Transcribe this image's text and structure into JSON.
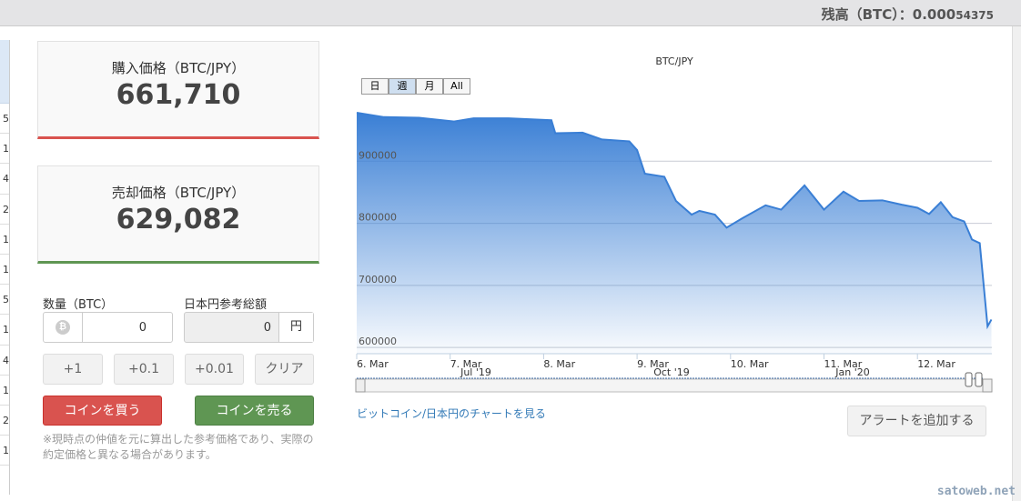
{
  "header": {
    "balance_label": "残高（BTC）：",
    "balance_main": "0.000",
    "balance_small": "54375"
  },
  "left_table": {
    "cells": [
      "5",
      "1",
      "4",
      "2",
      "1",
      "1",
      "5",
      "1",
      "4",
      "1",
      "2",
      "1"
    ]
  },
  "buy": {
    "label": "購入価格（BTC/JPY）",
    "value": "661,710",
    "color": "#d9534f"
  },
  "sell": {
    "label": "売却価格（BTC/JPY）",
    "value": "629,082",
    "color": "#5f9653"
  },
  "form": {
    "qty_label": "数量（BTC）",
    "qty_value": "0",
    "jpy_label": "日本円参考総額",
    "jpy_value": "0",
    "jpy_unit": "円",
    "coin_icon": "bitcoin-icon",
    "steps": [
      "+1",
      "+0.1",
      "+0.01",
      "クリア"
    ],
    "buy_button": "コインを買う",
    "sell_button": "コインを売る",
    "note": "※現時点の仲値を元に算出した参考価格であり、実際の約定価格と異なる場合があります。"
  },
  "chart_data": {
    "type": "area",
    "title": "BTC/JPY",
    "range_buttons": [
      "日",
      "週",
      "月",
      "All"
    ],
    "selected_range": "週",
    "y_ticks": [
      "900000",
      "800000",
      "700000",
      "600000"
    ],
    "ylim": [
      590000,
      1000000
    ],
    "x_ticks": [
      "6. Mar",
      "7. Mar",
      "8. Mar",
      "9. Mar",
      "10. Mar",
      "11. Mar",
      "12. Mar"
    ],
    "navigator_labels": [
      "Jul '19",
      "Oct '19",
      "Jan '20"
    ],
    "grid": true,
    "color": "#3a7fd5",
    "x": [
      "2020-03-06T00:00",
      "2020-03-06T07:00",
      "2020-03-06T16:00",
      "2020-03-07T01:00",
      "2020-03-07T06:00",
      "2020-03-07T15:00",
      "2020-03-08T02:00",
      "2020-03-08T03:00",
      "2020-03-08T10:00",
      "2020-03-08T15:00",
      "2020-03-08T22:00",
      "2020-03-09T00:00",
      "2020-03-09T02:00",
      "2020-03-09T07:00",
      "2020-03-09T10:00",
      "2020-03-09T14:00",
      "2020-03-09T16:00",
      "2020-03-09T20:00",
      "2020-03-09T23:00",
      "2020-03-10T03:00",
      "2020-03-10T09:00",
      "2020-03-10T13:00",
      "2020-03-10T19:00",
      "2020-03-11T00:00",
      "2020-03-11T05:00",
      "2020-03-11T09:00",
      "2020-03-11T15:00",
      "2020-03-11T20:00",
      "2020-03-12T00:00",
      "2020-03-12T03:00",
      "2020-03-12T06:00",
      "2020-03-12T09:00",
      "2020-03-12T12:00",
      "2020-03-12T14:00",
      "2020-03-12T16:00",
      "2020-03-12T18:00",
      "2020-03-12T19:00"
    ],
    "values": [
      978000,
      971000,
      970000,
      964000,
      969000,
      969000,
      966000,
      945000,
      946000,
      935000,
      932000,
      918000,
      880000,
      875000,
      836000,
      814000,
      820000,
      814000,
      793000,
      808000,
      829000,
      822000,
      861000,
      822000,
      851000,
      836000,
      837000,
      830000,
      825000,
      815000,
      834000,
      810000,
      803000,
      774000,
      768000,
      634000,
      645000
    ]
  },
  "links": {
    "chart_link": "ビットコイン/日本円のチャートを見る",
    "alert_button": "アラートを追加する"
  },
  "watermark": "satoweb.net"
}
